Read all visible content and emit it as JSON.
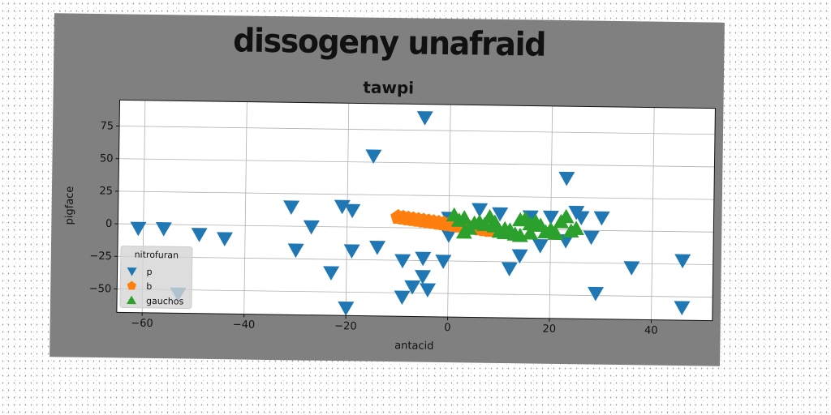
{
  "chart_data": {
    "type": "scatter",
    "title": "dissogeny unafraid",
    "subtitle": "tawpi",
    "xlabel": "antacid",
    "ylabel": "pigface",
    "xlim": [
      -65,
      52
    ],
    "ylim": [
      -68,
      95
    ],
    "xticks": [
      -60,
      -40,
      -20,
      0,
      20,
      40
    ],
    "xtick_labels": [
      "−60",
      "−40",
      "−20",
      "0",
      "20",
      "40"
    ],
    "yticks": [
      -50,
      -25,
      0,
      25,
      50,
      75
    ],
    "ytick_labels": [
      "−50",
      "−25",
      "0",
      "25",
      "50",
      "75"
    ],
    "grid": true,
    "legend": {
      "title": "nitrofuran",
      "placement": "lower-left"
    },
    "series": [
      {
        "name": "p",
        "marker": "triangle-down",
        "color": "#1f77b4",
        "points": [
          [
            -5,
            85
          ],
          [
            -15,
            55
          ],
          [
            23,
            40
          ],
          [
            -31,
            15
          ],
          [
            -21,
            16
          ],
          [
            -19,
            13
          ],
          [
            -27,
            0
          ],
          [
            -61,
            -3
          ],
          [
            -56,
            -3
          ],
          [
            -49,
            -7
          ],
          [
            -44,
            -10
          ],
          [
            -30,
            -18
          ],
          [
            -19,
            -18
          ],
          [
            -14,
            -15
          ],
          [
            -9,
            -25
          ],
          [
            -5,
            -23
          ],
          [
            -1,
            -25
          ],
          [
            -23,
            -35
          ],
          [
            -5,
            -37
          ],
          [
            -7,
            -45
          ],
          [
            -4,
            -47
          ],
          [
            -9,
            -53
          ],
          [
            -53,
            -53
          ],
          [
            -20,
            -62
          ],
          [
            0,
            -5
          ],
          [
            0,
            8
          ],
          [
            6,
            15
          ],
          [
            10,
            12
          ],
          [
            16,
            10
          ],
          [
            20,
            10
          ],
          [
            25,
            14
          ],
          [
            26,
            10
          ],
          [
            30,
            10
          ],
          [
            28,
            -5
          ],
          [
            23,
            -8
          ],
          [
            18,
            -12
          ],
          [
            14,
            -20
          ],
          [
            12,
            -30
          ],
          [
            29,
            -48
          ],
          [
            36,
            -28
          ],
          [
            46,
            -22
          ],
          [
            46,
            -58
          ]
        ]
      },
      {
        "name": "b",
        "marker": "pentagon",
        "color": "#ff7f0e",
        "points": [
          [
            -10,
            8
          ],
          [
            -9,
            7.5
          ],
          [
            -8,
            7
          ],
          [
            -7,
            6.5
          ],
          [
            -6,
            6
          ],
          [
            -5,
            5.5
          ],
          [
            -4,
            5
          ],
          [
            -3,
            4.5
          ],
          [
            -2,
            4
          ],
          [
            -1,
            3.5
          ],
          [
            0,
            3
          ],
          [
            1,
            2.5
          ],
          [
            2,
            2
          ],
          [
            3,
            1.5
          ],
          [
            4,
            1
          ],
          [
            5,
            0.5
          ],
          [
            6,
            0
          ],
          [
            7,
            -0.5
          ],
          [
            8,
            -1
          ]
        ]
      },
      {
        "name": "gauchos",
        "marker": "triangle-up",
        "color": "#2ca02c",
        "points": [
          [
            1,
            10
          ],
          [
            2,
            6
          ],
          [
            3,
            8
          ],
          [
            4,
            0
          ],
          [
            5,
            4
          ],
          [
            6,
            5
          ],
          [
            7,
            3
          ],
          [
            8,
            9
          ],
          [
            9,
            2
          ],
          [
            10,
            -2
          ],
          [
            11,
            -3
          ],
          [
            12,
            -1
          ],
          [
            13,
            -4
          ],
          [
            14,
            7
          ],
          [
            15,
            8
          ],
          [
            16,
            4
          ],
          [
            17,
            6
          ],
          [
            18,
            3
          ],
          [
            19,
            -2
          ],
          [
            20,
            0
          ],
          [
            21,
            -3
          ],
          [
            22,
            6
          ],
          [
            23,
            10
          ],
          [
            24,
            -1
          ],
          [
            25,
            1
          ],
          [
            14,
            -5
          ],
          [
            16,
            -3
          ],
          [
            3,
            -3
          ],
          [
            9,
            5
          ],
          [
            11,
            0
          ]
        ]
      }
    ]
  }
}
